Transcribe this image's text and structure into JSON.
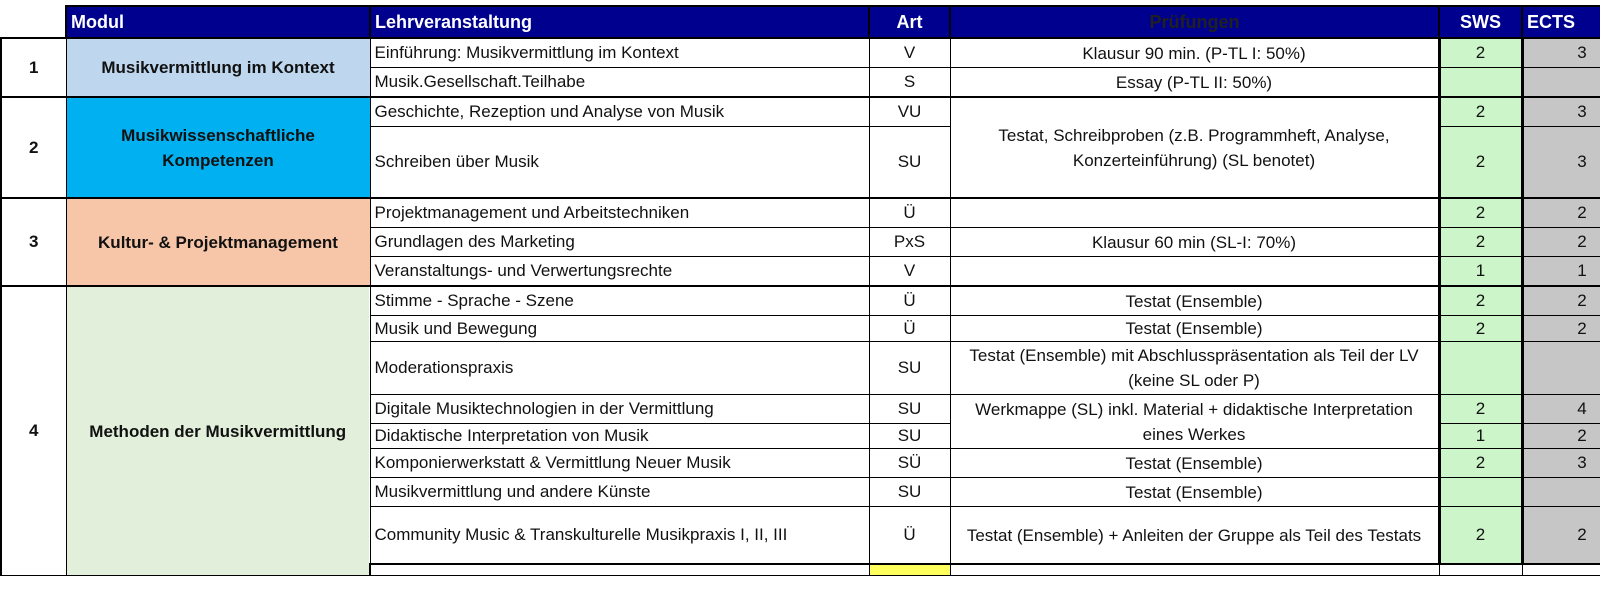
{
  "header": {
    "modul": "Modul",
    "lv": "Lehrveranstaltung",
    "art": "Art",
    "pruefungen": "Prüfungen",
    "sws": "SWS",
    "ects": "ECTS"
  },
  "modules": [
    {
      "num": "1",
      "name": "Musikvermittlung im Kontext"
    },
    {
      "num": "2",
      "name": "Musikwissenschaftliche Kompetenzen"
    },
    {
      "num": "3",
      "name": "Kultur- & Projektmanagement"
    },
    {
      "num": "4",
      "name": "Methoden der Musikvermittlung"
    }
  ],
  "rows": [
    {
      "lv": "Einführung: Musikvermittlung im Kontext",
      "art": "V",
      "pr": "Klausur 90 min. (P-TL I: 50%)",
      "sws": "2",
      "ects": "3"
    },
    {
      "lv": "Musik.Gesellschaft.Teilhabe",
      "art": "S",
      "pr": "Essay (P-TL II: 50%)",
      "sws": "",
      "ects": ""
    },
    {
      "lv": "Geschichte, Rezeption und Analyse von Musik",
      "art": "VU",
      "pr": "Testat, Schreibproben\n(z.B. Programmheft, Analyse, Konzerteinführung)\n(SL benotet)",
      "sws": "2",
      "ects": "3"
    },
    {
      "lv": "Schreiben über Musik",
      "art": "SU",
      "pr": "",
      "sws": "2",
      "ects": "3"
    },
    {
      "lv": "Projektmanagement und Arbeitstechniken",
      "art": "Ü",
      "pr": "",
      "sws": "2",
      "ects": "2"
    },
    {
      "lv": "Grundlagen des Marketing",
      "art": "PxS",
      "pr": "Klausur 60 min (SL-I: 70%)",
      "sws": "2",
      "ects": "2"
    },
    {
      "lv": "Veranstaltungs- und Verwertungsrechte",
      "art": "V",
      "pr": "",
      "sws": "1",
      "ects": "1"
    },
    {
      "lv": "Stimme - Sprache - Szene",
      "art": "Ü",
      "pr": "Testat (Ensemble)",
      "sws": "2",
      "ects": "2"
    },
    {
      "lv": "Musik und Bewegung",
      "art": "Ü",
      "pr": "Testat (Ensemble)",
      "sws": "2",
      "ects": "2"
    },
    {
      "lv": "Moderationspraxis",
      "art": "SU",
      "pr": "Testat (Ensemble)\nmit Abschlusspräsentation als Teil der LV (keine SL oder P)",
      "sws": "",
      "ects": ""
    },
    {
      "lv": "Digitale Musiktechnologien in der Vermittlung",
      "art": "SU",
      "pr": "Werkmappe (SL)\ninkl. Material + didaktische Interpretation eines Werkes",
      "sws": "2",
      "ects": "4"
    },
    {
      "lv": "Didaktische Interpretation von Musik",
      "art": "SU",
      "pr": "",
      "sws": "1",
      "ects": "2"
    },
    {
      "lv": "Komponierwerkstatt & Vermittlung Neuer Musik",
      "art": "SÜ",
      "pr": "Testat (Ensemble)",
      "sws": "2",
      "ects": "3"
    },
    {
      "lv": "Musikvermittlung und andere Künste",
      "art": "SU",
      "pr": "Testat (Ensemble)",
      "sws": "",
      "ects": ""
    },
    {
      "lv": "Community Music & Transkulturelle Musikpraxis I, II, III",
      "art": "Ü",
      "pr": "Testat (Ensemble)\n+ Anleiten der Gruppe als Teil des Testats",
      "sws": "2",
      "ects": "2"
    }
  ]
}
